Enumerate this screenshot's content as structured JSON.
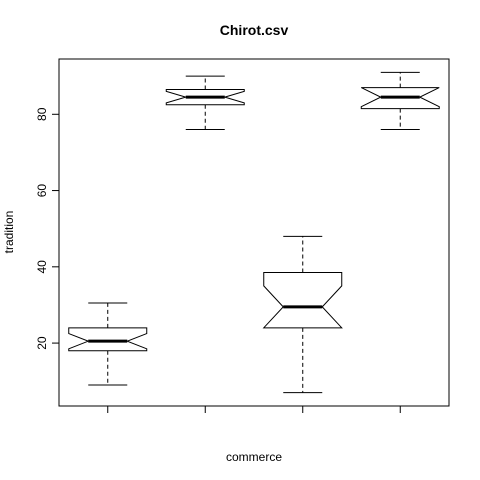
{
  "chart_data": {
    "type": "boxplot",
    "notched": true,
    "title": "Chirot.csv",
    "xlabel": "commerce",
    "ylabel": "tradition",
    "ylim": [
      3.5,
      94.5
    ],
    "yticks": [
      20,
      40,
      60,
      80
    ],
    "xtick_labels": [],
    "boxes": [
      {
        "position": 1,
        "whisker_low": 9,
        "q1": 18,
        "notch_low": 18.5,
        "median": 20.5,
        "notch_high": 22.5,
        "q3": 24,
        "whisker_high": 30.5
      },
      {
        "position": 2,
        "whisker_low": 76,
        "q1": 82.5,
        "notch_low": 83,
        "median": 84.5,
        "notch_high": 86,
        "q3": 86.5,
        "whisker_high": 90
      },
      {
        "position": 3,
        "whisker_low": 7,
        "q1": 24,
        "notch_low": 24,
        "median": 29.5,
        "notch_high": 35,
        "q3": 38.5,
        "whisker_high": 48
      },
      {
        "position": 4,
        "whisker_low": 76,
        "q1": 81.5,
        "notch_low": 82,
        "median": 84.5,
        "notch_high": 87,
        "q3": 87,
        "whisker_high": 91
      }
    ]
  }
}
